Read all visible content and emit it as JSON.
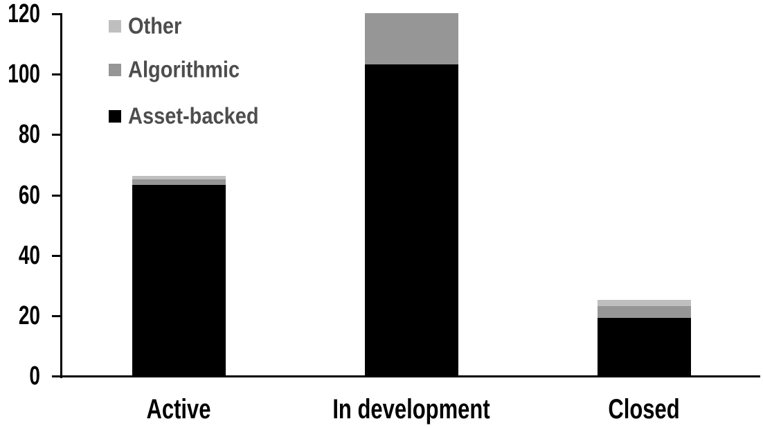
{
  "chart_data": {
    "type": "bar",
    "stacked": true,
    "title": "",
    "categories": [
      "Active",
      "In development",
      "Closed"
    ],
    "series": [
      {
        "name": "Asset-backed",
        "color": "#000000",
        "values": [
          63,
          103,
          19
        ]
      },
      {
        "name": "Algorithmic",
        "color": "#969696",
        "values": [
          2,
          17,
          4
        ]
      },
      {
        "name": "Other",
        "color": "#bfbfbf",
        "values": [
          1,
          0,
          2
        ]
      }
    ],
    "totals": [
      66,
      120,
      25
    ],
    "xlabel": "",
    "ylabel": "",
    "ylim": [
      0,
      120
    ],
    "yticks": [
      0,
      20,
      40,
      60,
      80,
      100,
      120
    ],
    "grid": false,
    "legend": {
      "position": "top-left",
      "order_top_to_bottom": [
        "Other",
        "Algorithmic",
        "Asset-backed"
      ]
    },
    "colors": {
      "axis": "#000000",
      "tick_label_text": "#000000",
      "category_label_text": "#000000",
      "legend_text": "#4d4d4d",
      "background": "#ffffff"
    }
  }
}
